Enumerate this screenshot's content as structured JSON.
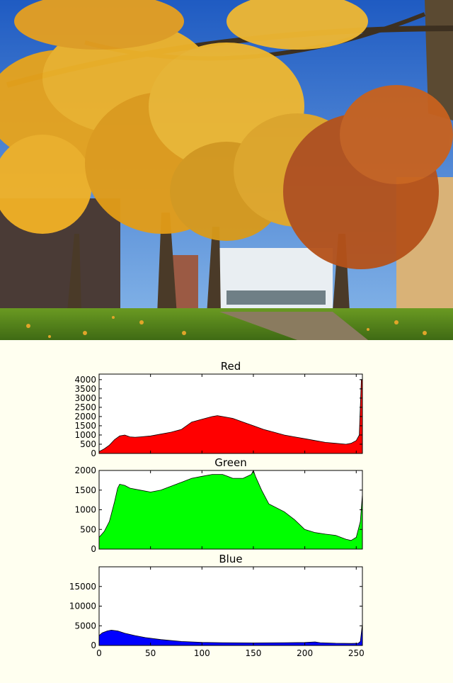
{
  "photo": {
    "subject": "autumn trees in park photo",
    "colors": {
      "sky": "#2f6fd0",
      "foliage": "#e8a41c",
      "grass": "#5a8a1e",
      "trunk": "#4a3a28"
    }
  },
  "chart_data": [
    {
      "type": "area",
      "title": "Red",
      "color": "#ff0000",
      "xlabel": "",
      "ylabel": "",
      "xlim": [
        0,
        256
      ],
      "ylim": [
        0,
        4300
      ],
      "yticks": [
        0,
        500,
        1000,
        1500,
        2000,
        2500,
        3000,
        3500,
        4000
      ],
      "show_xticklabels": false,
      "points": [
        [
          0,
          100
        ],
        [
          5,
          250
        ],
        [
          10,
          450
        ],
        [
          15,
          750
        ],
        [
          20,
          950
        ],
        [
          25,
          1000
        ],
        [
          30,
          900
        ],
        [
          35,
          880
        ],
        [
          40,
          900
        ],
        [
          50,
          950
        ],
        [
          60,
          1050
        ],
        [
          70,
          1150
        ],
        [
          80,
          1300
        ],
        [
          85,
          1500
        ],
        [
          90,
          1700
        ],
        [
          100,
          1850
        ],
        [
          110,
          2000
        ],
        [
          115,
          2050
        ],
        [
          120,
          2000
        ],
        [
          130,
          1900
        ],
        [
          140,
          1700
        ],
        [
          150,
          1500
        ],
        [
          160,
          1300
        ],
        [
          170,
          1150
        ],
        [
          180,
          1000
        ],
        [
          190,
          900
        ],
        [
          200,
          800
        ],
        [
          210,
          700
        ],
        [
          220,
          600
        ],
        [
          230,
          550
        ],
        [
          240,
          500
        ],
        [
          245,
          550
        ],
        [
          250,
          700
        ],
        [
          253,
          1000
        ],
        [
          255,
          4000
        ],
        [
          256,
          4000
        ]
      ]
    },
    {
      "type": "area",
      "title": "Green",
      "color": "#00ff00",
      "xlabel": "",
      "ylabel": "",
      "xlim": [
        0,
        256
      ],
      "ylim": [
        0,
        2000
      ],
      "yticks": [
        0,
        500,
        1000,
        1500,
        2000
      ],
      "show_xticklabels": false,
      "points": [
        [
          0,
          300
        ],
        [
          5,
          450
        ],
        [
          10,
          700
        ],
        [
          15,
          1200
        ],
        [
          18,
          1550
        ],
        [
          20,
          1650
        ],
        [
          25,
          1620
        ],
        [
          30,
          1550
        ],
        [
          40,
          1500
        ],
        [
          50,
          1450
        ],
        [
          60,
          1500
        ],
        [
          70,
          1600
        ],
        [
          80,
          1700
        ],
        [
          90,
          1800
        ],
        [
          100,
          1850
        ],
        [
          110,
          1900
        ],
        [
          120,
          1900
        ],
        [
          125,
          1850
        ],
        [
          130,
          1800
        ],
        [
          140,
          1800
        ],
        [
          148,
          1900
        ],
        [
          150,
          2000
        ],
        [
          152,
          1850
        ],
        [
          158,
          1500
        ],
        [
          165,
          1150
        ],
        [
          180,
          950
        ],
        [
          190,
          750
        ],
        [
          200,
          500
        ],
        [
          210,
          420
        ],
        [
          220,
          380
        ],
        [
          230,
          350
        ],
        [
          240,
          250
        ],
        [
          245,
          220
        ],
        [
          250,
          300
        ],
        [
          254,
          700
        ],
        [
          256,
          1400
        ]
      ]
    },
    {
      "type": "area",
      "title": "Blue",
      "color": "#0000ff",
      "xlabel": "",
      "ylabel": "",
      "xlim": [
        0,
        256
      ],
      "ylim": [
        0,
        20000
      ],
      "yticks": [
        0,
        5000,
        10000,
        15000
      ],
      "xticks": [
        0,
        50,
        100,
        150,
        200,
        250
      ],
      "show_xticklabels": true,
      "points": [
        [
          0,
          2500
        ],
        [
          3,
          3200
        ],
        [
          8,
          3700
        ],
        [
          12,
          3900
        ],
        [
          18,
          3700
        ],
        [
          25,
          3100
        ],
        [
          35,
          2500
        ],
        [
          45,
          2000
        ],
        [
          60,
          1500
        ],
        [
          80,
          1000
        ],
        [
          100,
          800
        ],
        [
          120,
          700
        ],
        [
          150,
          650
        ],
        [
          180,
          700
        ],
        [
          200,
          750
        ],
        [
          210,
          900
        ],
        [
          215,
          700
        ],
        [
          230,
          550
        ],
        [
          245,
          500
        ],
        [
          252,
          550
        ],
        [
          254,
          1000
        ],
        [
          256,
          5500
        ]
      ]
    }
  ]
}
